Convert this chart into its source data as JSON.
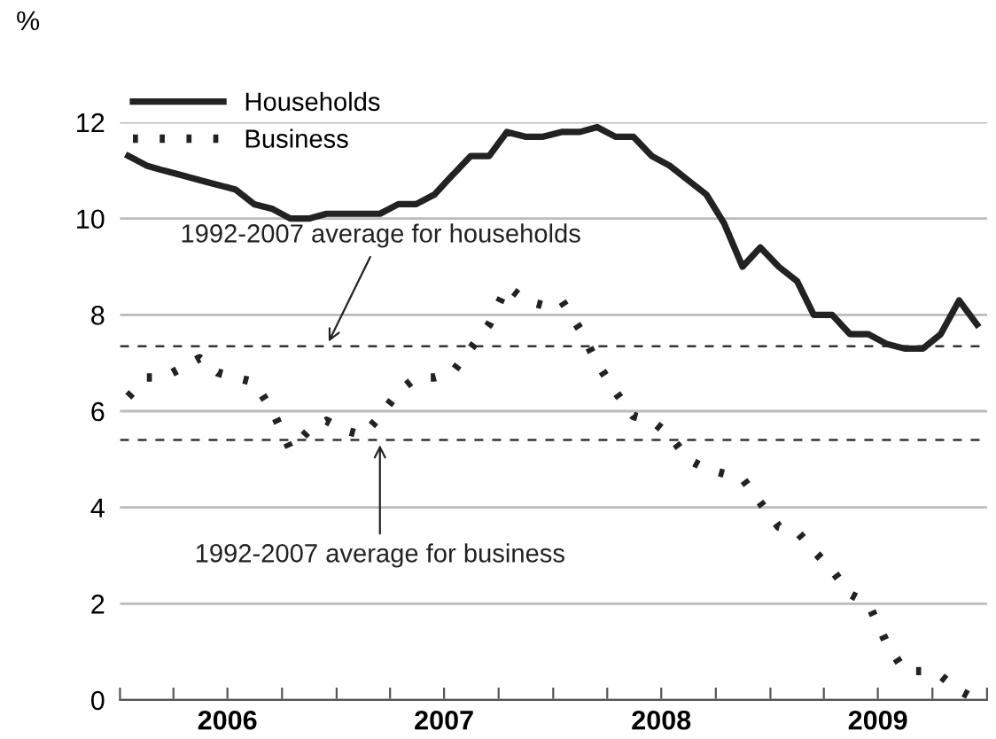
{
  "chart_data": {
    "type": "line",
    "ylabel": "%",
    "x": [
      "2006-01-15",
      "2006-02-15",
      "2006-03-15",
      "2006-04-15",
      "2006-05-15",
      "2006-06-15",
      "2006-07-15",
      "2006-08-15",
      "2006-09-15",
      "2006-10-15",
      "2006-11-15",
      "2006-12-15",
      "2007-01-15",
      "2007-02-15",
      "2007-03-15",
      "2007-04-15",
      "2007-05-15",
      "2007-06-15",
      "2007-07-15",
      "2007-08-15",
      "2007-09-15",
      "2007-10-15",
      "2007-11-15",
      "2007-12-15",
      "2008-01-15",
      "2008-02-15",
      "2008-03-15",
      "2008-04-15",
      "2008-05-15",
      "2008-06-15",
      "2008-07-15",
      "2008-08-15",
      "2008-09-15",
      "2008-10-15",
      "2008-11-15",
      "2008-12-15",
      "2009-01-15",
      "2009-02-15",
      "2009-03-15",
      "2009-04-15",
      "2009-05-15",
      "2009-06-15",
      "2009-07-15",
      "2009-08-15",
      "2009-09-15",
      "2009-10-15",
      "2009-11-15",
      "2009-12-15"
    ],
    "series": [
      {
        "name": "Households",
        "color": "#222222",
        "line_style": "solid",
        "values": [
          11.3,
          11.1,
          11.0,
          10.9,
          10.8,
          10.7,
          10.6,
          10.3,
          10.2,
          10.0,
          10.0,
          10.1,
          10.1,
          10.1,
          10.1,
          10.3,
          10.3,
          10.5,
          10.9,
          11.3,
          11.3,
          11.8,
          11.7,
          11.7,
          11.8,
          11.8,
          11.9,
          11.7,
          11.7,
          11.3,
          11.1,
          10.8,
          10.5,
          9.9,
          9.0,
          9.4,
          9.0,
          8.7,
          8.0,
          8.0,
          7.6,
          7.6,
          7.4,
          7.3,
          7.3,
          7.6,
          8.3,
          7.8
        ]
      },
      {
        "name": "Business",
        "color": "#222222",
        "line_style": "dotted",
        "values": [
          6.3,
          6.7,
          6.7,
          6.9,
          7.1,
          6.8,
          6.7,
          6.6,
          6.0,
          5.2,
          5.6,
          5.8,
          5.6,
          5.5,
          5.9,
          6.4,
          6.7,
          6.7,
          6.8,
          7.3,
          7.8,
          8.6,
          8.3,
          8.2,
          8.3,
          7.7,
          7.0,
          6.4,
          5.9,
          5.8,
          5.5,
          5.0,
          4.8,
          4.7,
          4.6,
          4.1,
          3.6,
          3.5,
          3.1,
          2.7,
          2.2,
          2.0,
          1.2,
          0.6,
          0.6,
          0.5,
          0.2,
          0.0
        ]
      }
    ],
    "ylim": [
      0,
      12
    ],
    "yticks": [
      0,
      2,
      4,
      6,
      8,
      10,
      12
    ],
    "xlim": [
      "2006-01-01",
      "2010-01-01"
    ],
    "xticks": [
      {
        "value": "2006-01-01",
        "label": null
      },
      {
        "value": "2006-04-01",
        "label": null
      },
      {
        "value": "2006-07-01",
        "label": "2006"
      },
      {
        "value": "2006-10-01",
        "label": null
      },
      {
        "value": "2007-01-01",
        "label": null
      },
      {
        "value": "2007-04-01",
        "label": null
      },
      {
        "value": "2007-07-01",
        "label": "2007"
      },
      {
        "value": "2007-10-01",
        "label": null
      },
      {
        "value": "2008-01-01",
        "label": null
      },
      {
        "value": "2008-04-01",
        "label": null
      },
      {
        "value": "2008-07-01",
        "label": "2008"
      },
      {
        "value": "2008-10-01",
        "label": null
      },
      {
        "value": "2009-01-01",
        "label": null
      },
      {
        "value": "2009-04-01",
        "label": null
      },
      {
        "value": "2009-07-01",
        "label": "2009"
      },
      {
        "value": "2009-10-01",
        "label": null
      },
      {
        "value": "2010-01-01",
        "label": null
      }
    ],
    "grid": "y",
    "legend": "top left",
    "ref_lines": [
      {
        "axis": "y",
        "value": 7.35,
        "label": null,
        "color": "#333333",
        "line_style": "dashed"
      },
      {
        "axis": "y",
        "value": 5.4,
        "label": null,
        "color": "#333333",
        "line_style": "dashed"
      }
    ],
    "annotations": [
      {
        "text": "1992-2007 average for households",
        "x": "2006-12-15",
        "y": 7.35
      },
      {
        "text": "1992-2007 average for business",
        "x": "2007-03-15",
        "y": 5.4
      }
    ]
  }
}
